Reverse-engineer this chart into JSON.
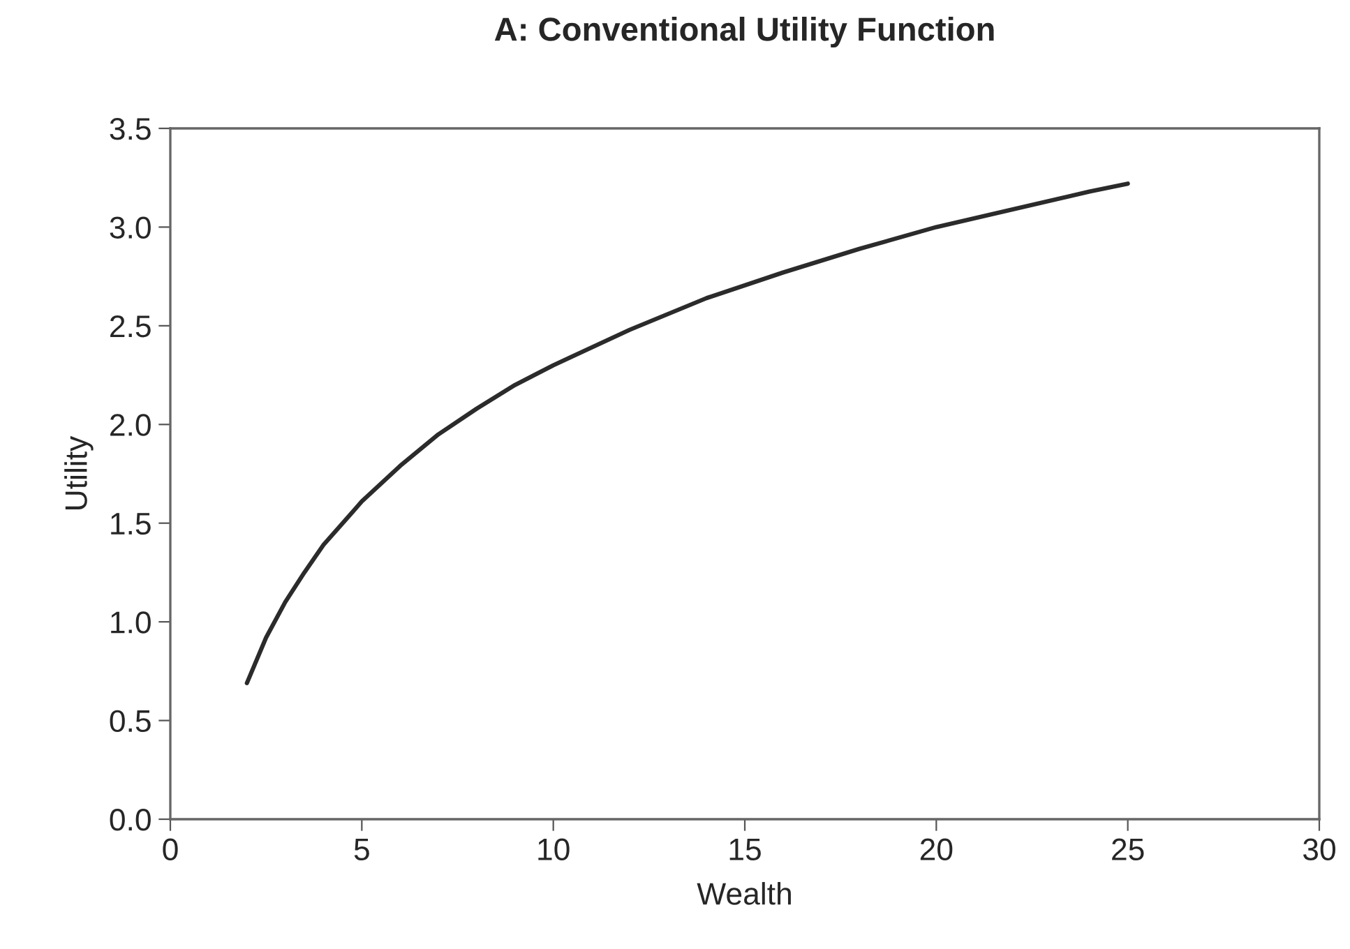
{
  "chart_data": {
    "type": "line",
    "title": "A: Conventional Utility Function",
    "xlabel": "Wealth",
    "ylabel": "Utility",
    "x": [
      2,
      2.5,
      3,
      3.5,
      4,
      5,
      6,
      7,
      8,
      9,
      10,
      12,
      14,
      16,
      18,
      20,
      22,
      24,
      25
    ],
    "series": [
      {
        "color": "#2b2b2b",
        "values": [
          0.69,
          0.92,
          1.1,
          1.25,
          1.39,
          1.61,
          1.79,
          1.95,
          2.08,
          2.2,
          2.3,
          2.48,
          2.64,
          2.77,
          2.89,
          3.0,
          3.09,
          3.18,
          3.22
        ]
      }
    ],
    "xlim": [
      0,
      30
    ],
    "xticks": [
      0,
      5,
      10,
      15,
      20,
      25,
      30
    ],
    "ylim": [
      0,
      3.5
    ],
    "yticks": [
      {
        "value": 0,
        "label": "0.0"
      },
      {
        "value": 0.5,
        "label": "0.5"
      },
      {
        "value": 1,
        "label": "1.0"
      },
      {
        "value": 1.5,
        "label": "1.5"
      },
      {
        "value": 2,
        "label": "2.0"
      },
      {
        "value": 2.5,
        "label": "2.5"
      },
      {
        "value": 3,
        "label": "3.0"
      },
      {
        "value": 3.5,
        "label": "3.5"
      }
    ],
    "grid": false
  }
}
